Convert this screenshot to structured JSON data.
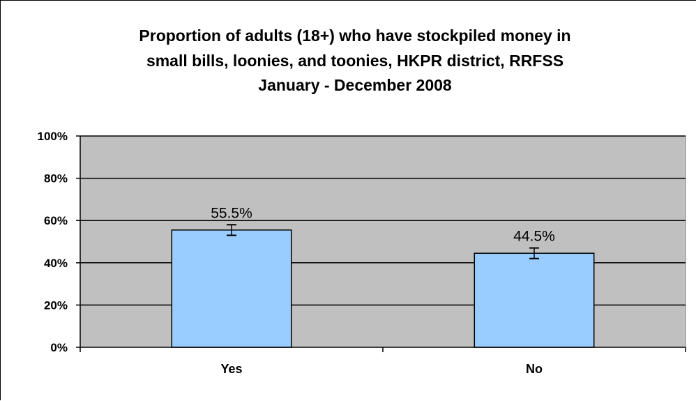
{
  "chart_data": {
    "type": "bar",
    "title_lines": [
      "Proportion of adults (18+) who have stockpiled money in",
      "small bills, loonies, and toonies, HKPR district, RRFSS",
      "January - December 2008"
    ],
    "categories": [
      "Yes",
      "No"
    ],
    "values": [
      55.5,
      44.5
    ],
    "error_bars": [
      {
        "low": 53.0,
        "high": 58.0
      },
      {
        "low": 42.0,
        "high": 47.0
      }
    ],
    "data_labels": [
      "55.5%",
      "44.5%"
    ],
    "y_ticks": [
      0,
      20,
      40,
      60,
      80,
      100
    ],
    "y_tick_labels": [
      "0%",
      "20%",
      "40%",
      "60%",
      "80%",
      "100%"
    ],
    "ylim": [
      0,
      100
    ],
    "grid": true,
    "legend": "none",
    "colors": {
      "bar_fill": "#99ccff",
      "plot_background": "#c0c0c0",
      "gridline": "#000000"
    }
  }
}
